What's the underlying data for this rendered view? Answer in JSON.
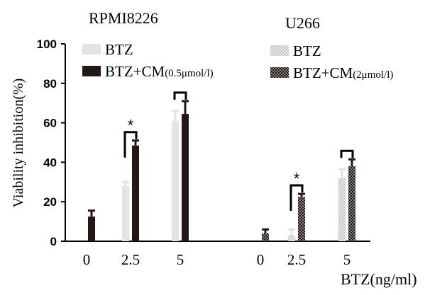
{
  "chart_data": [
    {
      "type": "bar",
      "title": "RPMI8226",
      "categories": [
        "0",
        "2.5",
        "5"
      ],
      "series": [
        {
          "name": "BTZ",
          "values": [
            0,
            28,
            61
          ],
          "errors": [
            0,
            2,
            5
          ],
          "color": "#e3e3e3",
          "pattern": "solid"
        },
        {
          "name": "BTZ+CM",
          "name_sub": "(0.5μmol/l)",
          "values": [
            12.5,
            48.5,
            64.5
          ],
          "errors": [
            3,
            2.5,
            6.5
          ],
          "color": "#231815",
          "pattern": "solid"
        }
      ],
      "significance": [
        {
          "category": "2.5",
          "label": "*"
        },
        {
          "category": "5",
          "label": ""
        }
      ]
    },
    {
      "type": "bar",
      "title": "U266",
      "categories": [
        "0",
        "2.5",
        "5"
      ],
      "series": [
        {
          "name": "BTZ",
          "values": [
            0,
            3,
            32
          ],
          "errors": [
            0,
            3,
            4.5
          ],
          "color": "#e3e3e3",
          "pattern": "dotted-light"
        },
        {
          "name": "BTZ+CM",
          "name_sub": "(2μmol/l)",
          "values": [
            4,
            22.5,
            38
          ],
          "errors": [
            2,
            1.5,
            3.5
          ],
          "color": "#231815",
          "pattern": "dotted-dark"
        }
      ],
      "significance": [
        {
          "category": "2.5",
          "label": "*"
        },
        {
          "category": "5",
          "label": ""
        }
      ]
    }
  ],
  "axis": {
    "ylabel": "Viability inhibition(%)",
    "xlabel": "BTZ(ng/ml)",
    "ylim": [
      0,
      100
    ],
    "yticks": [
      "0",
      "20",
      "40",
      "60",
      "80",
      "100"
    ]
  }
}
